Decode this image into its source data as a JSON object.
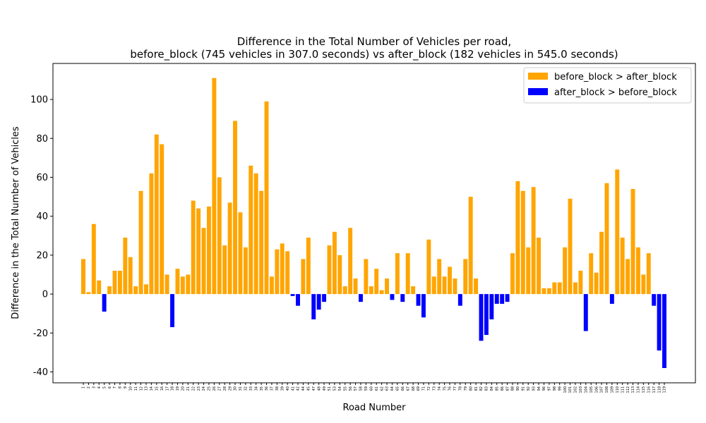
{
  "chart_data": {
    "type": "bar",
    "title": "Difference in the Total Number of Vehicles per road,",
    "subtitle": "before_block (745 vehicles in 307.0 seconds) vs after_block (182 vehicles in 545.0 seconds)",
    "xlabel": "Road Number",
    "ylabel": "Difference in the Total Number of Vehicles",
    "categories": [
      "1",
      "2",
      "3",
      "4",
      "5",
      "6",
      "7",
      "8",
      "9",
      "10",
      "11",
      "12",
      "13",
      "14",
      "15",
      "16",
      "17",
      "18",
      "19",
      "20",
      "21",
      "22",
      "23",
      "24",
      "25",
      "26",
      "27",
      "28",
      "29",
      "30",
      "31",
      "32",
      "33",
      "34",
      "35",
      "36",
      "37",
      "38",
      "39",
      "40",
      "41",
      "42",
      "44",
      "45",
      "47",
      "48",
      "49",
      "51",
      "53",
      "54",
      "55",
      "56",
      "57",
      "58",
      "59",
      "60",
      "61",
      "62",
      "63",
      "64",
      "65",
      "66",
      "67",
      "68",
      "69",
      "71",
      "72",
      "73",
      "74",
      "75",
      "76",
      "77",
      "78",
      "79",
      "80",
      "81",
      "82",
      "83",
      "84",
      "85",
      "86",
      "87",
      "88",
      "90",
      "91",
      "92",
      "93",
      "94",
      "96",
      "97",
      "98",
      "99",
      "100",
      "101",
      "102",
      "103",
      "104",
      "105",
      "106",
      "107",
      "108",
      "109",
      "110",
      "111",
      "112",
      "113",
      "114",
      "115",
      "116",
      "117",
      "118",
      "119"
    ],
    "values": [
      18,
      1,
      36,
      7,
      -9,
      4,
      12,
      12,
      29,
      19,
      4,
      53,
      5,
      62,
      82,
      77,
      10,
      -17,
      13,
      9,
      10,
      48,
      44,
      34,
      45,
      111,
      60,
      25,
      47,
      89,
      42,
      24,
      66,
      62,
      53,
      99,
      9,
      23,
      26,
      22,
      -1,
      -6,
      18,
      29,
      -13,
      -8,
      -4,
      25,
      32,
      20,
      4,
      34,
      8,
      -4,
      18,
      4,
      13,
      2,
      8,
      -3,
      21,
      -4,
      21,
      4,
      -6,
      -12,
      28,
      9,
      18,
      9,
      14,
      8,
      -6,
      18,
      50,
      8,
      -24,
      -21,
      -13,
      -5,
      -5,
      -4,
      21,
      58,
      53,
      24,
      55,
      29,
      3,
      3,
      6,
      6,
      24,
      49,
      6,
      12,
      -19,
      21,
      11,
      32,
      57,
      -5,
      64,
      29,
      18,
      54,
      24,
      10,
      21,
      -6,
      -29,
      -38
    ],
    "ylim": [
      -45.6,
      118.5
    ],
    "yticks": [
      -40,
      -20,
      0,
      20,
      40,
      60,
      80,
      100
    ],
    "legend": [
      {
        "name": "before_block > after_block",
        "color": "#ffa500"
      },
      {
        "name": "after_block > before_block",
        "color": "#0000ff"
      }
    ],
    "legend_position": "upper right"
  }
}
